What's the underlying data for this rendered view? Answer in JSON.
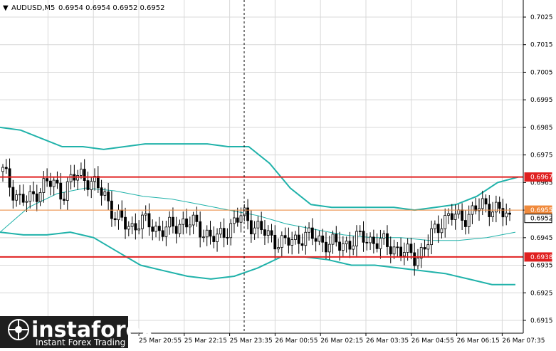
{
  "header": {
    "collapse_arrow": "▼",
    "symbol": "AUDUSD,M5",
    "ohlc": "0.6954 0.6954 0.6952 0.6952"
  },
  "price_axis": {
    "ticks": [
      "0.7025",
      "0.7015",
      "0.7005",
      "0.6995",
      "0.6985",
      "0.6975",
      "0.6965",
      "0.6955",
      "0.6945",
      "0.6935",
      "0.6925",
      "0.6915"
    ]
  },
  "time_axis": {
    "ticks": [
      "25 Mar 20:55",
      "25 Mar 22:15",
      "25 Mar 23:35",
      "26 Mar 00:55",
      "26 Mar 02:15",
      "26 Mar 03:35",
      "26 Mar 04:55",
      "26 Mar 06:15",
      "26 Mar 07:35"
    ]
  },
  "level_labels": {
    "resistance": "0.6967",
    "current_orange": "0.6955",
    "last_price": "0.6952",
    "support": "0.6938"
  },
  "watermark": {
    "brand": "instaforex",
    "tagline": "Instant Forex Trading"
  },
  "colors": {
    "background": "#ffffff",
    "grid": "#d8d8d8",
    "candle": "#000000",
    "bollinger": "#20b2aa",
    "resistance_line": "#e02020",
    "support_line": "#e02020",
    "orange_line": "#f08a3c",
    "cursor_line": "#000000",
    "watermark_bg": "#1f1f1f"
  },
  "chart_data": {
    "type": "candlestick",
    "title": "AUDUSD,M5",
    "timeframe": "M5",
    "y_range": [
      0.691,
      0.703
    ],
    "horizontal_levels": [
      {
        "name": "resistance",
        "price": 0.6967,
        "color": "#e02020"
      },
      {
        "name": "support",
        "price": 0.6938,
        "color": "#e02020"
      },
      {
        "name": "pivot",
        "price": 0.6955,
        "color": "#f08a3c"
      }
    ],
    "last_price": 0.6952,
    "close_path": [
      0.6969,
      0.6963,
      0.6959,
      0.6958,
      0.6962,
      0.6965,
      0.6964,
      0.6961,
      0.6966,
      0.6968,
      0.6966,
      0.6963,
      0.696,
      0.6953,
      0.695,
      0.6949,
      0.6951,
      0.695,
      0.6948,
      0.6948,
      0.6949,
      0.6951,
      0.695,
      0.6948,
      0.6946,
      0.6944,
      0.6948,
      0.6951,
      0.6953,
      0.695,
      0.6948,
      0.6945,
      0.6944,
      0.6943,
      0.6944,
      0.6946,
      0.6945,
      0.6944,
      0.6943,
      0.6942,
      0.6943,
      0.6944,
      0.6945,
      0.6944,
      0.6943,
      0.6942,
      0.6941,
      0.6939,
      0.6938,
      0.6941,
      0.6946,
      0.6951,
      0.6953,
      0.6952,
      0.6953,
      0.6955,
      0.6957,
      0.6956,
      0.6954,
      0.6952
    ],
    "bollinger_upper": [
      0.6985,
      0.6984,
      0.6981,
      0.6978,
      0.6978,
      0.6977,
      0.6978,
      0.6979,
      0.6979,
      0.6979,
      0.6979,
      0.6978,
      0.6978,
      0.6972,
      0.6963,
      0.6957,
      0.6956,
      0.6956,
      0.6956,
      0.6956,
      0.6955,
      0.6956,
      0.6957,
      0.696,
      0.6965,
      0.6967
    ],
    "bollinger_middle": [
      0.6947,
      0.6956,
      0.6961,
      0.6963,
      0.6962,
      0.696,
      0.6959,
      0.6957,
      0.6955,
      0.6953,
      0.695,
      0.6948,
      0.6946,
      0.6945,
      0.6945,
      0.6944,
      0.6944,
      0.6945,
      0.6947
    ],
    "bollinger_lower": [
      0.6947,
      0.6946,
      0.6946,
      0.6947,
      0.6945,
      0.694,
      0.6935,
      0.6933,
      0.6931,
      0.693,
      0.6931,
      0.6934,
      0.6938,
      0.6938,
      0.6937,
      0.6935,
      0.6935,
      0.6934,
      0.6933,
      0.6932,
      0.693,
      0.6928,
      0.6928
    ]
  }
}
